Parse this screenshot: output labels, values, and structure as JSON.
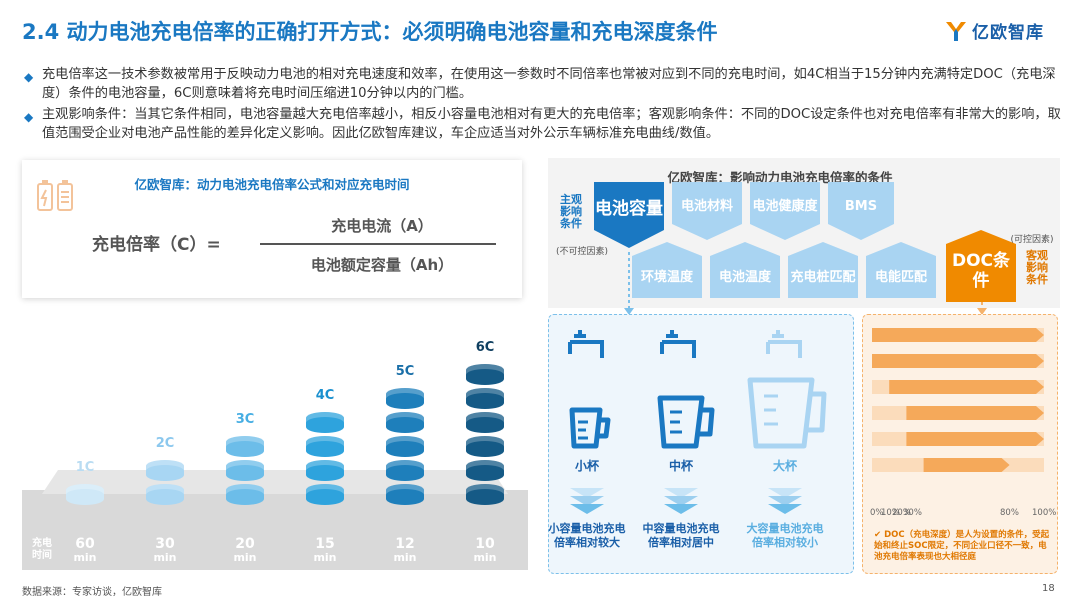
{
  "title": "2.4 动力电池充电倍率的正确打开方式：必须明确电池容量和充电深度条件",
  "logo": {
    "text": "亿欧智库",
    "color": "#1a78c2"
  },
  "bullets": [
    "充电倍率这一技术参数被常用于反映动力电池的相对充电速度和效率，在使用这一参数时不同倍率也常被对应到不同的充电时间，如4C相当于15分钟内充满特定DOC（充电深度）条件的电池容量，6C则意味着将充电时间压缩进10分钟以内的门槛。",
    "主观影响条件：当其它条件相同，电池容量越大充电倍率越小，相反小容量电池相对有更大的充电倍率；客观影响条件：不同的DOC设定条件也对充电倍率有非常大的影响，取值范围受企业对电池产品性能的差异化定义影响。因此亿欧智库建议，车企应适当对外公示车辆标准充电曲线/数值。"
  ],
  "formula": {
    "card_title": "亿欧智库：动力电池充电倍率公式和对应充电时间",
    "lhs": "充电倍率（C）=",
    "numerator": "充电电流（A）",
    "denominator": "电池额定容量（Ah）"
  },
  "columns_chart": {
    "row_label": "充电时间",
    "items": [
      {
        "c": "1C",
        "time": "60",
        "unit": "min",
        "layers": 1,
        "color": "#cfe8f7",
        "label_color": "#b9dcf2"
      },
      {
        "c": "2C",
        "time": "30",
        "unit": "min",
        "layers": 2,
        "color": "#a8d6f3",
        "label_color": "#8cc8ee"
      },
      {
        "c": "3C",
        "time": "20",
        "unit": "min",
        "layers": 3,
        "color": "#6cbde9",
        "label_color": "#47aee3"
      },
      {
        "c": "4C",
        "time": "15",
        "unit": "min",
        "layers": 4,
        "color": "#2ea3dd",
        "label_color": "#1a90cf"
      },
      {
        "c": "5C",
        "time": "12",
        "unit": "min",
        "layers": 5,
        "color": "#1e7fbb",
        "label_color": "#1a6fa8"
      },
      {
        "c": "6C",
        "time": "10",
        "unit": "min",
        "layers": 6,
        "color": "#155a86",
        "label_color": "#0f3f60"
      }
    ]
  },
  "conditions": {
    "title": "亿欧智库：影响动力电池充电倍率的条件",
    "subjective_label": "主观影响条件",
    "subjective_note": "(不可控因素)",
    "objective_label": "客观影响条件",
    "objective_note": "(可控因素)",
    "top_row": [
      "电池容量",
      "电池材料",
      "电池健康度",
      "BMS"
    ],
    "bottom_row": [
      "环境温度",
      "电池温度",
      "充电桩匹配",
      "电能匹配"
    ],
    "doc_box": "DOC条件"
  },
  "cups": [
    {
      "label": "小杯",
      "result": "小容量电池充电倍率相对较大"
    },
    {
      "label": "中杯",
      "result": "中容量电池充电倍率相对居中"
    },
    {
      "label": "大杯",
      "result": "大容量电池充电倍率相对较小"
    }
  ],
  "doc_bars": {
    "ticks": [
      "0%",
      "10%",
      "20%",
      "30%",
      "80%",
      "100%"
    ],
    "bars": [
      {
        "start": 0,
        "end": 100
      },
      {
        "start": 0,
        "end": 100
      },
      {
        "start": 10,
        "end": 100
      },
      {
        "start": 20,
        "end": 100
      },
      {
        "start": 20,
        "end": 100
      },
      {
        "start": 30,
        "end": 80
      }
    ],
    "note": "✔ DOC（充电深度）是人为设置的条件，受起始和终止SOC限定，不同企业口径不一致，电池充电倍率表现也大相径庭"
  },
  "footer": "数据来源：专家访谈，亿欧智库",
  "page_number": "18"
}
